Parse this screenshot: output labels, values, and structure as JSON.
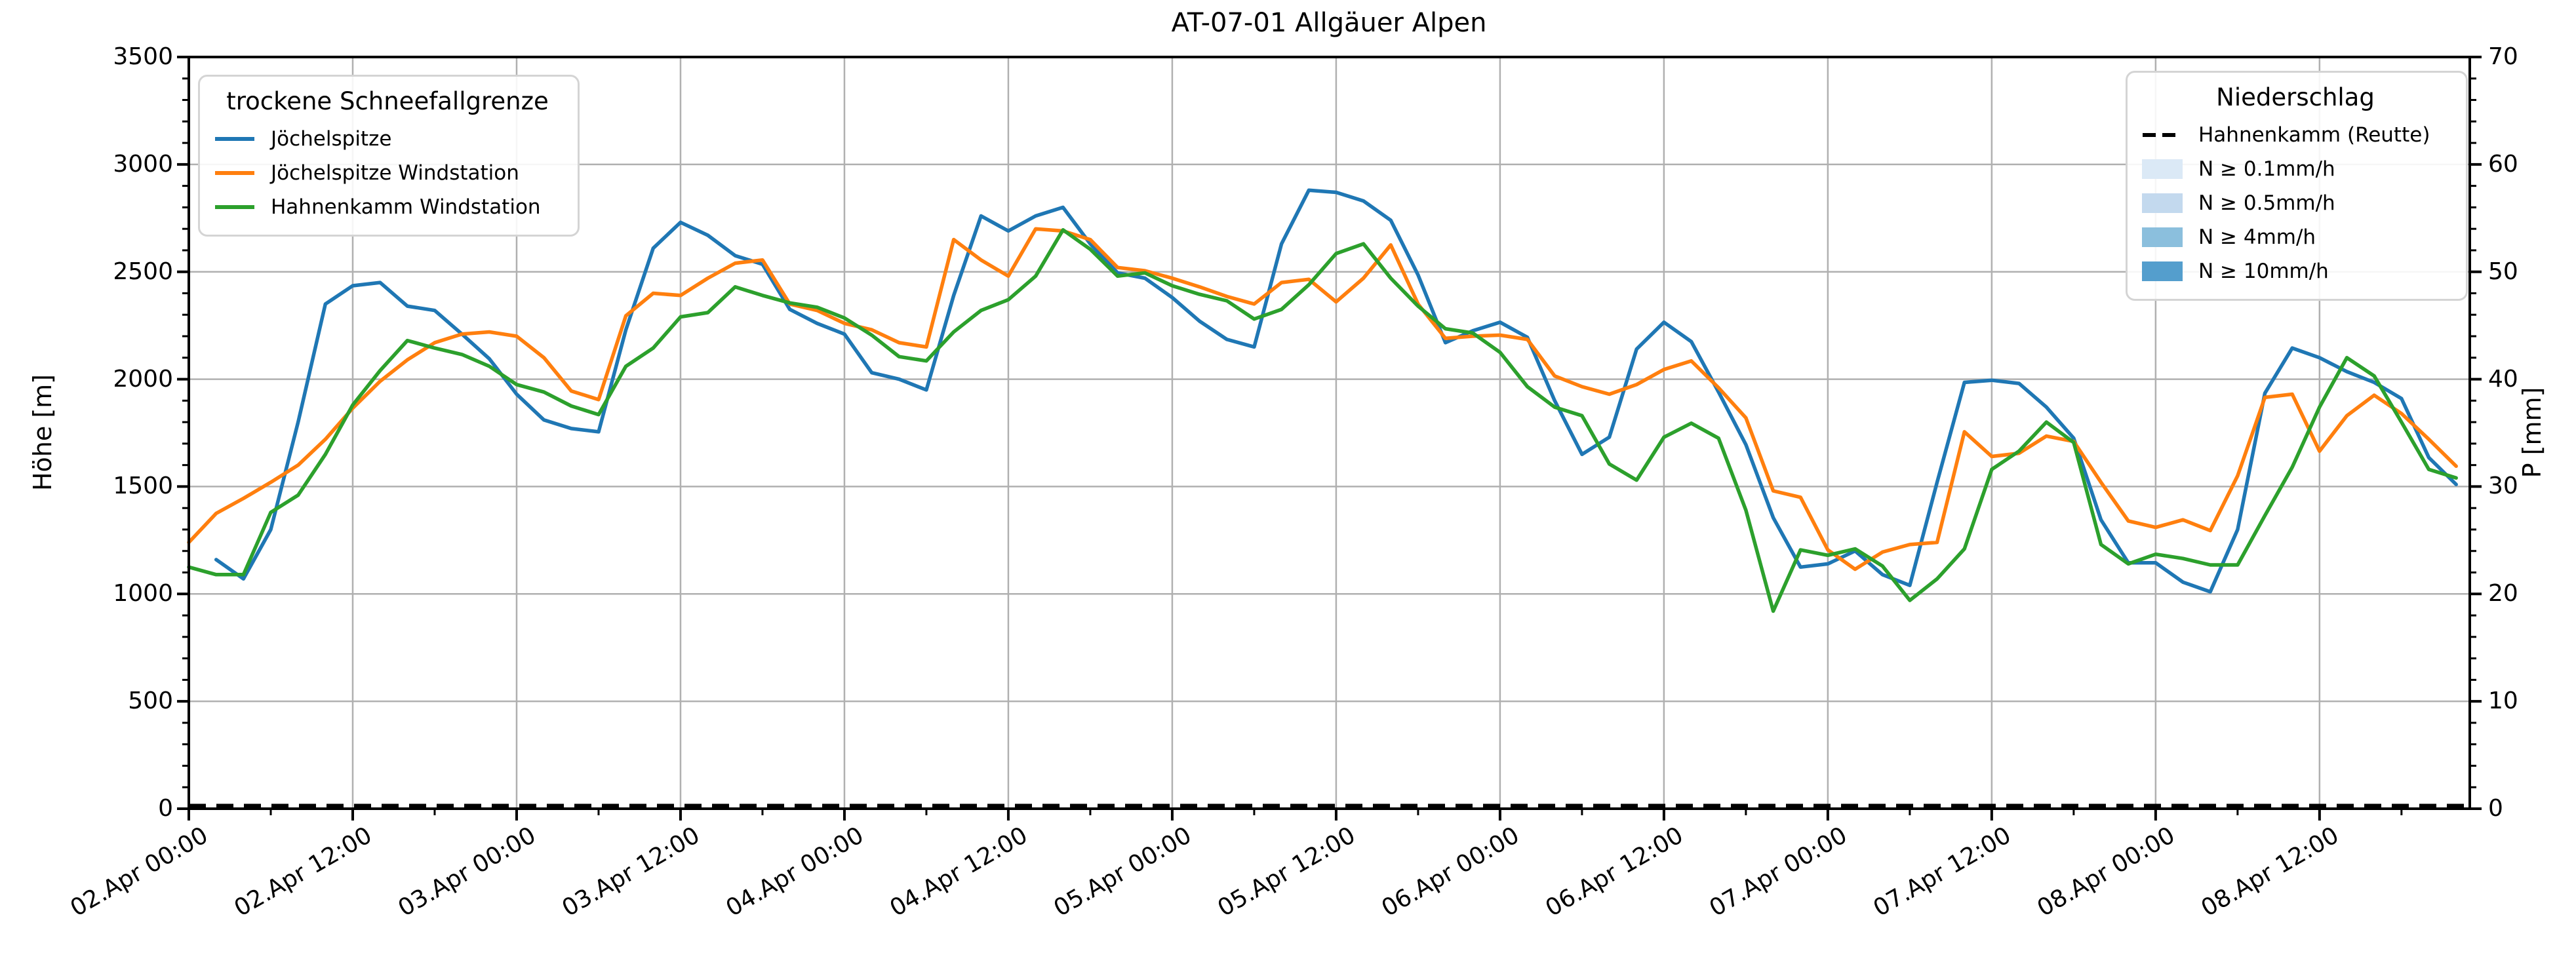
{
  "header": {
    "title": "AT-07-01 Allgäuer Alpen"
  },
  "legends": {
    "snowline": {
      "title": "trockene Schneefallgrenze",
      "items": [
        {
          "label": "Jöchelspitze",
          "type": "line",
          "color": "#1f77b4"
        },
        {
          "label": "Jöchelspitze Windstation",
          "type": "line",
          "color": "#ff7f0e"
        },
        {
          "label": "Hahnenkamm Windstation",
          "type": "line",
          "color": "#2ca02c"
        }
      ]
    },
    "precip": {
      "title": "Niederschlag",
      "items": [
        {
          "label": "Hahnenkamm (Reutte)",
          "type": "dashed-line",
          "color": "#000000"
        },
        {
          "label": "N ≥ 0.1mm/h",
          "type": "patch",
          "color": "#dbe9f6"
        },
        {
          "label": "N ≥ 0.5mm/h",
          "type": "patch",
          "color": "#c3d9ee"
        },
        {
          "label": "N ≥ 4mm/h",
          "type": "patch",
          "color": "#8bbfdd"
        },
        {
          "label": "N ≥ 10mm/h",
          "type": "patch",
          "color": "#549ecd"
        }
      ]
    }
  },
  "chart_data": {
    "type": "line",
    "title": "AT-07-01 Allgäuer Alpen",
    "grid": true,
    "x_axis": {
      "start_label": "02.Apr 00:00",
      "end_hours": 167,
      "sample_step_hours": 2,
      "major_tick_every_hours": 12,
      "minor_tick_every_hours": 6,
      "tick_labels": [
        "02.Apr 00:00",
        "02.Apr 12:00",
        "03.Apr 00:00",
        "03.Apr 12:00",
        "04.Apr 00:00",
        "04.Apr 12:00",
        "05.Apr 00:00",
        "05.Apr 12:00",
        "06.Apr 00:00",
        "06.Apr 12:00",
        "07.Apr 00:00",
        "07.Apr 12:00",
        "08.Apr 00:00",
        "08.Apr 12:00"
      ]
    },
    "y_left": {
      "label": "Höhe [m]",
      "range": [
        0,
        3500
      ],
      "major_step": 500,
      "minor_step": 100
    },
    "y_right": {
      "label": "P [mm]",
      "range": [
        0,
        70
      ],
      "major_step": 10,
      "minor_step": 2
    },
    "series": [
      {
        "name": "Jöchelspitze",
        "axis": "left",
        "unit": "m",
        "color": "#1f77b4",
        "values": [
          null,
          1160,
          1070,
          1300,
          1800,
          2350,
          2435,
          2450,
          2340,
          2320,
          2210,
          2095,
          1930,
          1810,
          1770,
          1755,
          2230,
          2610,
          2730,
          2670,
          2575,
          2535,
          2325,
          2260,
          2210,
          2030,
          2000,
          1950,
          2390,
          2760,
          2690,
          2760,
          2800,
          2630,
          2495,
          2470,
          2380,
          2270,
          2185,
          2150,
          2630,
          2880,
          2870,
          2830,
          2740,
          2485,
          2170,
          2225,
          2265,
          2195,
          1900,
          1650,
          1730,
          2140,
          2265,
          2175,
          1940,
          1695,
          1355,
          1125,
          1140,
          1200,
          1090,
          1040,
          1520,
          1985,
          1995,
          1980,
          1870,
          1725,
          1345,
          1145,
          1145,
          1055,
          1010,
          1300,
          1935,
          2145,
          2100,
          2035,
          1985,
          1910,
          1635,
          1510
        ]
      },
      {
        "name": "Jöchelspitze Windstation",
        "axis": "left",
        "unit": "m",
        "color": "#ff7f0e",
        "values": [
          1240,
          1375,
          1445,
          1520,
          1600,
          1720,
          1865,
          1990,
          2090,
          2170,
          2210,
          2220,
          2200,
          2100,
          1945,
          1905,
          2295,
          2400,
          2390,
          2470,
          2540,
          2555,
          2350,
          2320,
          2260,
          2230,
          2170,
          2150,
          2650,
          2555,
          2480,
          2700,
          2690,
          2650,
          2520,
          2505,
          2470,
          2430,
          2385,
          2350,
          2450,
          2465,
          2360,
          2470,
          2625,
          2350,
          2190,
          2200,
          2205,
          2185,
          2015,
          1965,
          1930,
          1975,
          2045,
          2085,
          1960,
          1820,
          1480,
          1450,
          1205,
          1115,
          1195,
          1230,
          1240,
          1755,
          1640,
          1655,
          1735,
          1710,
          1520,
          1340,
          1310,
          1345,
          1295,
          1550,
          1915,
          1930,
          1665,
          1830,
          1925,
          1840,
          1720,
          1595
        ]
      },
      {
        "name": "Hahnenkamm Windstation",
        "axis": "left",
        "unit": "m",
        "color": "#2ca02c",
        "values": [
          1125,
          1090,
          1090,
          1380,
          1460,
          1650,
          1880,
          2040,
          2180,
          2145,
          2115,
          2060,
          1975,
          1940,
          1875,
          1835,
          2060,
          2145,
          2290,
          2310,
          2430,
          2390,
          2355,
          2335,
          2285,
          2205,
          2105,
          2085,
          2220,
          2320,
          2370,
          2480,
          2695,
          2605,
          2480,
          2495,
          2435,
          2395,
          2365,
          2280,
          2325,
          2440,
          2585,
          2630,
          2470,
          2340,
          2235,
          2215,
          2125,
          1965,
          1870,
          1830,
          1605,
          1530,
          1730,
          1795,
          1725,
          1390,
          920,
          1205,
          1180,
          1210,
          1130,
          970,
          1070,
          1210,
          1580,
          1665,
          1800,
          1705,
          1230,
          1140,
          1185,
          1165,
          1135,
          1135,
          1365,
          1590,
          1870,
          2100,
          2015,
          1800,
          1580,
          1540
        ]
      }
    ],
    "precipitation": {
      "name": "Hahnenkamm (Reutte)",
      "axis": "right",
      "unit": "mm",
      "style": "dashed",
      "color": "#000000",
      "constant_value": 0
    }
  }
}
